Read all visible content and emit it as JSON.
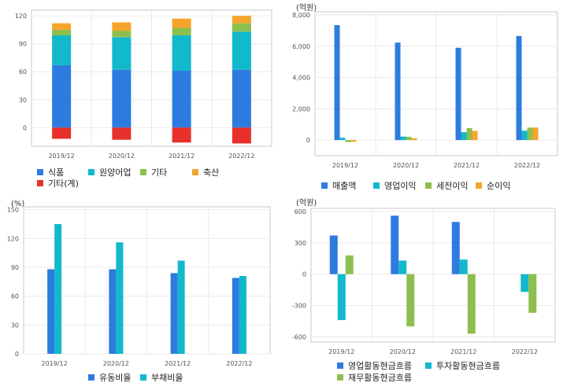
{
  "colors": {
    "blue": "#2e7be0",
    "cyan": "#12b8cc",
    "green": "#8dbf4e",
    "orange": "#f5a52c",
    "red": "#e8302a",
    "frame": "#c8c8c8",
    "grid": "#eaeaea"
  },
  "chart_data": [
    {
      "type": "bar",
      "stacked": true,
      "title": "",
      "unit": "",
      "categories": [
        "2019/12",
        "2020/12",
        "2021/12",
        "2022/12"
      ],
      "yticks": [
        "0",
        "30",
        "60",
        "90",
        "120"
      ],
      "ylim": [
        -20,
        126
      ],
      "series": [
        {
          "name": "식품",
          "color_key": "blue",
          "values": [
            67,
            62,
            61,
            62
          ]
        },
        {
          "name": "원양어업",
          "color_key": "cyan",
          "values": [
            32,
            35,
            38,
            41
          ]
        },
        {
          "name": "기타",
          "color_key": "green",
          "values": [
            6,
            7,
            8,
            9
          ]
        },
        {
          "name": "축산",
          "color_key": "orange",
          "values": [
            7,
            9,
            10,
            8
          ]
        },
        {
          "name": "기타(계)",
          "color_key": "red",
          "values": [
            -12,
            -13,
            -16,
            -17
          ]
        }
      ],
      "grid": true,
      "legend_position": "bottom"
    },
    {
      "type": "bar",
      "title": "",
      "unit": "(억원)",
      "categories": [
        "2019/12",
        "2020/12",
        "2021/12",
        "2022/12"
      ],
      "yticks": [
        "0",
        "2,000",
        "4,000",
        "6,000",
        "8,000"
      ],
      "ylim": [
        -1000,
        8200
      ],
      "series": [
        {
          "name": "매출액",
          "color_key": "blue",
          "values": [
            7350,
            6230,
            5900,
            6650
          ]
        },
        {
          "name": "영업이익",
          "color_key": "cyan",
          "values": [
            150,
            220,
            500,
            600
          ]
        },
        {
          "name": "세전이익",
          "color_key": "green",
          "values": [
            -130,
            210,
            760,
            800
          ]
        },
        {
          "name": "순이익",
          "color_key": "orange",
          "values": [
            -110,
            120,
            590,
            800
          ]
        }
      ],
      "grid": true,
      "legend_position": "bottom"
    },
    {
      "type": "bar",
      "title": "",
      "unit": "(%)",
      "categories": [
        "2019/12",
        "2020/12",
        "2021/12",
        "2022/12"
      ],
      "yticks": [
        "0",
        "30",
        "60",
        "90",
        "120",
        "150"
      ],
      "ylim": [
        0,
        153
      ],
      "series": [
        {
          "name": "유동비율",
          "color_key": "blue",
          "values": [
            88,
            88,
            84,
            79
          ]
        },
        {
          "name": "부채비율",
          "color_key": "cyan",
          "values": [
            135,
            116,
            97,
            81
          ]
        }
      ],
      "grid": true,
      "legend_position": "bottom"
    },
    {
      "type": "bar",
      "title": "",
      "unit": "(억원)",
      "categories": [
        "2019/12",
        "2020/12",
        "2021/12",
        "2022/12"
      ],
      "yticks": [
        "-600",
        "-300",
        "0",
        "300",
        "600"
      ],
      "ylim": [
        -650,
        630
      ],
      "series": [
        {
          "name": "영업활동현금흐름",
          "color_key": "blue",
          "values": [
            370,
            560,
            500,
            0
          ]
        },
        {
          "name": "투자활동현금흐름",
          "color_key": "cyan",
          "values": [
            -440,
            130,
            140,
            -170
          ]
        },
        {
          "name": "재무활동현금흐름",
          "color_key": "green",
          "values": [
            180,
            -500,
            -570,
            -370
          ]
        }
      ],
      "grid": true,
      "legend_position": "bottom"
    }
  ]
}
